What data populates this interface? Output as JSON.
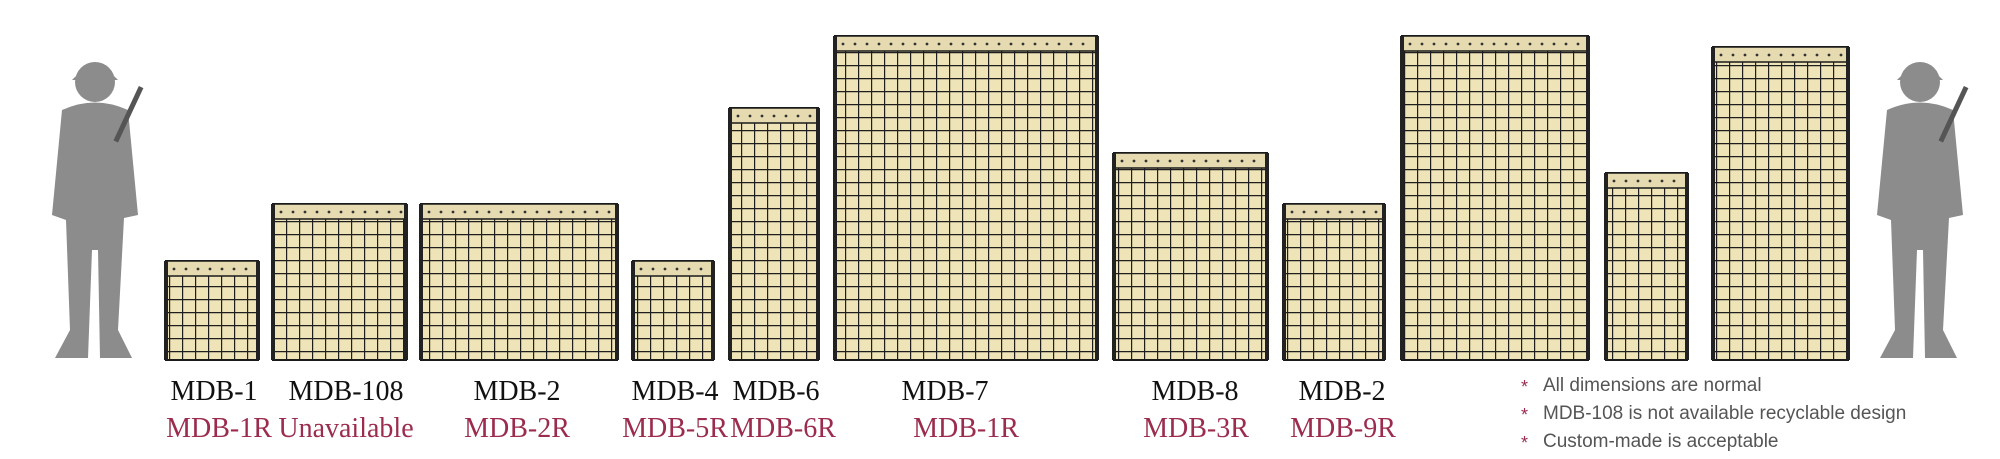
{
  "units": [
    {
      "model": "MDB-1",
      "recycled": "MDB-1R"
    },
    {
      "model": "MDB-108",
      "recycled": "Unavailable"
    },
    {
      "model": "MDB-2",
      "recycled": "MDB-2R"
    },
    {
      "model": "MDB-4",
      "recycled": "MDB-5R"
    },
    {
      "model": "MDB-6",
      "recycled": "MDB-6R"
    },
    {
      "model": "MDB-7",
      "recycled": "MDB-1R"
    },
    {
      "model": "MDB-8",
      "recycled": "MDB-3R"
    },
    {
      "model": "MDB-2",
      "recycled": "MDB-9R"
    }
  ],
  "notes": [
    "All dimensions are normal",
    "MDB-108 is not available recyclable design",
    "Custom-made is acceptable"
  ]
}
